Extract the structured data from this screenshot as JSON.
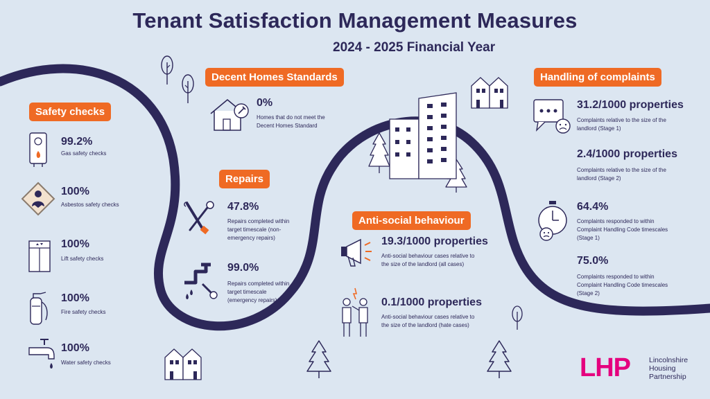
{
  "header": {
    "title": "Tenant Satisfaction Management Measures",
    "subtitle": "2024 - 2025 Financial Year"
  },
  "colors": {
    "accent": "#ef6a24",
    "navy": "#2d2859",
    "background": "#dce6f1",
    "logo": "#e5007e"
  },
  "safety": {
    "label": "Safety checks",
    "items": [
      {
        "value": "99.2%",
        "desc": "Gas safety checks",
        "icon": "boiler-icon"
      },
      {
        "value": "100%",
        "desc": "Asbestos safety checks",
        "icon": "asbestos-icon"
      },
      {
        "value": "100%",
        "desc": "Lift safety checks",
        "icon": "lift-icon"
      },
      {
        "value": "100%",
        "desc": "Fire safety checks",
        "icon": "fire-extinguisher-icon"
      },
      {
        "value": "100%",
        "desc": "Water safety checks",
        "icon": "tap-icon"
      }
    ]
  },
  "decent": {
    "label": "Decent Homes Standards",
    "value": "0%",
    "desc1": "Homes that do not meet the",
    "desc2": "Decent Homes Standard"
  },
  "repairs": {
    "label": "Repairs",
    "items": [
      {
        "value": "47.8%",
        "d1": "Repairs completed within",
        "d2": "target timescale (non-",
        "d3": "emergency repairs)"
      },
      {
        "value": "99.0%",
        "d1": "Repairs completed within",
        "d2": "target timescale",
        "d3": "(emergency repairs)"
      }
    ]
  },
  "asb": {
    "label": "Anti-social behaviour",
    "items": [
      {
        "value": "19.3/1000 properties",
        "d1": "Anti-social behaviour cases relative to",
        "d2": "the size of the landlord (all cases)"
      },
      {
        "value": "0.1/1000 properties",
        "d1": "Anti-social behaviour cases relative to",
        "d2": "the size of the landlord (hate cases)"
      }
    ]
  },
  "complaints": {
    "label": "Handling of complaints",
    "items": [
      {
        "value": "31.2/1000 properties",
        "d1": "Complaints relative to the size of the",
        "d2": "landlord (Stage 1)",
        "d3": ""
      },
      {
        "value": "2.4/1000 properties",
        "d1": "Complaints relative to the size of the",
        "d2": "landlord (Stage 2)",
        "d3": ""
      },
      {
        "value": "64.4%",
        "d1": "Complaints responded to within",
        "d2": "Complaint Handling Code timescales",
        "d3": "(Stage 1)"
      },
      {
        "value": "75.0%",
        "d1": "Complaints responded to within",
        "d2": "Complaint Handling Code timescales",
        "d3": "(Stage 2)"
      }
    ]
  },
  "logo": {
    "mark": "LHP",
    "line1": "Lincolnshire",
    "line2": "Housing",
    "line3": "Partnership"
  }
}
